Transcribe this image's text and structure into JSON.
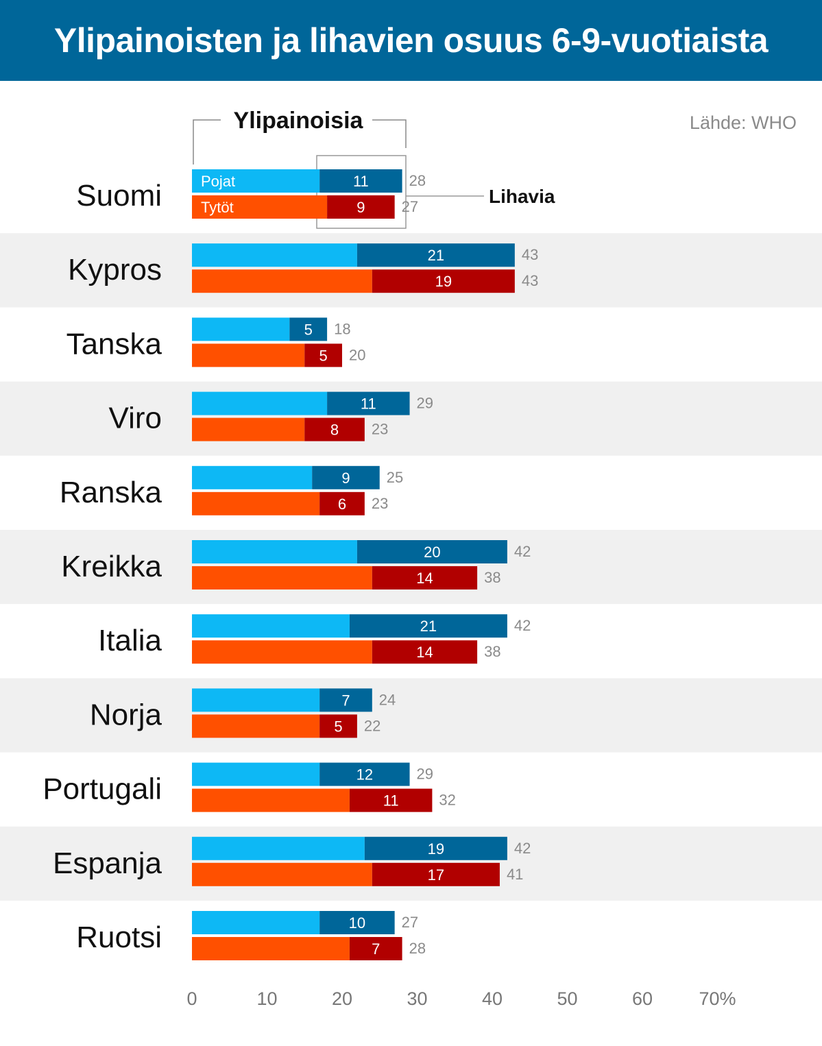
{
  "title": "Ylipainoisten ja lihavien osuus 6-9-vuotiaista",
  "source": "Lähde: WHO",
  "legend": {
    "boys": "Pojat",
    "girls": "Tytöt"
  },
  "annotations": {
    "overweight": "Ylipainoisia",
    "obese": "Lihavia"
  },
  "colors": {
    "boys_overweight": "#0db8f5",
    "boys_obese": "#006699",
    "girls_overweight": "#ff5000",
    "girls_obese": "#b10000",
    "band": "#f0f0f0",
    "header": "#006699"
  },
  "chart_data": {
    "type": "bar",
    "orientation": "horizontal",
    "stacked": true,
    "categories": [
      "Suomi",
      "Kypros",
      "Tanska",
      "Viro",
      "Ranska",
      "Kreikka",
      "Italia",
      "Norja",
      "Portugali",
      "Espanja",
      "Ruotsi"
    ],
    "series": [
      {
        "name": "Pojat",
        "total": [
          28,
          43,
          18,
          29,
          25,
          42,
          42,
          24,
          29,
          42,
          27
        ],
        "obese": [
          11,
          21,
          5,
          11,
          9,
          20,
          21,
          7,
          12,
          19,
          10
        ]
      },
      {
        "name": "Tytöt",
        "total": [
          27,
          43,
          20,
          23,
          23,
          38,
          38,
          22,
          32,
          41,
          28
        ],
        "obese": [
          9,
          19,
          5,
          8,
          6,
          14,
          14,
          5,
          11,
          17,
          7
        ]
      }
    ],
    "xticks": [
      "0",
      "10",
      "20",
      "30",
      "40",
      "50",
      "60",
      "70%"
    ],
    "xlim": [
      0,
      70
    ]
  }
}
